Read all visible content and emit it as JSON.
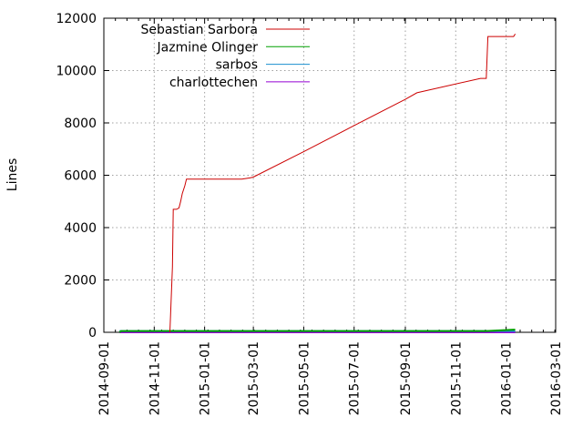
{
  "chart_data": {
    "type": "line",
    "title": "",
    "xlabel": "",
    "ylabel": "Lines",
    "x_type": "date",
    "xlim": [
      "2014-09-01",
      "2016-03-01"
    ],
    "ylim": [
      0,
      12000
    ],
    "grid": true,
    "legend_position": "top-left",
    "x_ticks": [
      "2014-09-01",
      "2014-11-01",
      "2015-01-01",
      "2015-03-01",
      "2015-05-01",
      "2015-07-01",
      "2015-09-01",
      "2015-11-01",
      "2016-01-01",
      "2016-03-01"
    ],
    "y_ticks": [
      0,
      2000,
      4000,
      6000,
      8000,
      10000,
      12000
    ],
    "series": [
      {
        "name": "Sebastian Sarbora",
        "color": "#cc0000",
        "x": [
          "2014-11-20",
          "2014-11-21",
          "2014-11-23",
          "2014-11-24",
          "2014-11-25",
          "2014-11-28",
          "2014-12-01",
          "2014-12-03",
          "2014-12-05",
          "2014-12-08",
          "2014-12-10",
          "2015-01-20",
          "2015-02-15",
          "2015-02-25",
          "2015-03-01",
          "2015-05-01",
          "2015-07-01",
          "2015-09-01",
          "2015-09-15",
          "2015-12-01",
          "2015-12-08",
          "2015-12-10",
          "2016-01-10",
          "2016-01-12"
        ],
        "y": [
          0,
          800,
          2500,
          4700,
          4700,
          4700,
          4750,
          5000,
          5300,
          5600,
          5850,
          5850,
          5850,
          5900,
          5930,
          6900,
          7900,
          8900,
          9150,
          9700,
          9700,
          11300,
          11300,
          11400
        ]
      },
      {
        "name": "Jazmine Olinger",
        "color": "#00a000",
        "x": [
          "2014-09-20",
          "2014-09-22",
          "2014-10-10",
          "2014-10-20",
          "2015-12-08",
          "2016-01-10",
          "2016-01-12"
        ],
        "y": [
          0,
          50,
          50,
          50,
          50,
          100,
          100
        ]
      },
      {
        "name": "sarbos",
        "color": "#1a8fcf",
        "x": [
          "2014-09-20",
          "2016-01-12"
        ],
        "y": [
          50,
          50
        ]
      },
      {
        "name": "charlottechen",
        "color": "#9400d3",
        "x": [
          "2014-09-20",
          "2016-01-12"
        ],
        "y": [
          0,
          0
        ]
      }
    ]
  }
}
